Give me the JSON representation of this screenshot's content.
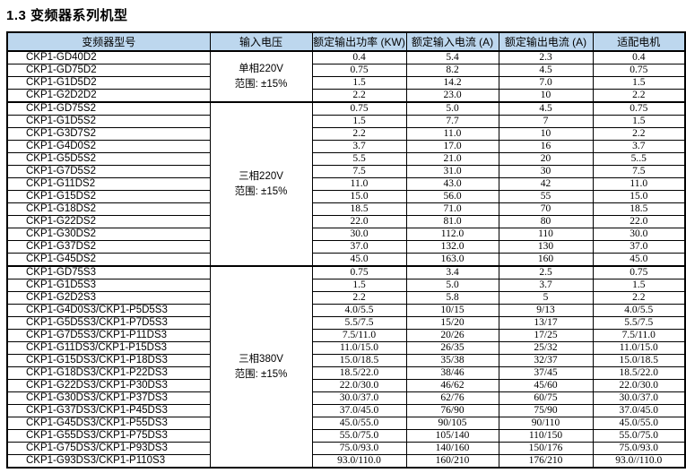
{
  "page": {
    "title": "1.3 变频器系列机型"
  },
  "table": {
    "headers": [
      "变频器型号",
      "输入电压",
      "额定输出功率 (KW)",
      "额定输入电流 (A)",
      "额定输出电流 (A)",
      "适配电机"
    ],
    "groups": [
      {
        "voltage": "单相220V",
        "range": "范围: ±15%",
        "rows": [
          [
            "CKP1-GD40D2",
            "0.4",
            "5.4",
            "2.3",
            "0.4"
          ],
          [
            "CKP1-GD75D2",
            "0.75",
            "8.2",
            "4.5",
            "0.75"
          ],
          [
            "CKP1-G1D5D2",
            "1.5",
            "14.2",
            "7.0",
            "1.5"
          ],
          [
            "CKP1-G2D2D2",
            "2.2",
            "23.0",
            "10",
            "2.2"
          ]
        ]
      },
      {
        "voltage": "三相220V",
        "range": "范围: ±15%",
        "rows": [
          [
            "CKP1-GD75S2",
            "0.75",
            "5.0",
            "4.5",
            "0.75"
          ],
          [
            "CKP1-G1D5S2",
            "1.5",
            "7.7",
            "7",
            "1.5"
          ],
          [
            "CKP1-G3D7S2",
            "2.2",
            "11.0",
            "10",
            "2.2"
          ],
          [
            "CKP1-G4D0S2",
            "3.7",
            "17.0",
            "16",
            "3.7"
          ],
          [
            "CKP1-G5D5S2",
            "5.5",
            "21.0",
            "20",
            "5..5"
          ],
          [
            "CKP1-G7D5S2",
            "7.5",
            "31.0",
            "30",
            "7.5"
          ],
          [
            "CKP1-G11DS2",
            "11.0",
            "43.0",
            "42",
            "11.0"
          ],
          [
            "CKP1-G15DS2",
            "15.0",
            "56.0",
            "55",
            "15.0"
          ],
          [
            "CKP1-G18DS2",
            "18.5",
            "71.0",
            "70",
            "18.5"
          ],
          [
            "CKP1-G22DS2",
            "22.0",
            "81.0",
            "80",
            "22.0"
          ],
          [
            "CKP1-G30DS2",
            "30.0",
            "112.0",
            "110",
            "30.0"
          ],
          [
            "CKP1-G37DS2",
            "37.0",
            "132.0",
            "130",
            "37.0"
          ],
          [
            "CKP1-G45DS2",
            "45.0",
            "163.0",
            "160",
            "45.0"
          ]
        ]
      },
      {
        "voltage": "三相380V",
        "range": "范围: ±15%",
        "rows": [
          [
            "CKP1-GD75S3",
            "0.75",
            "3.4",
            "2.5",
            "0.75"
          ],
          [
            "CKP1-G1D5S3",
            "1.5",
            "5.0",
            "3.7",
            "1.5"
          ],
          [
            "CKP1-G2D2S3",
            "2.2",
            "5.8",
            "5",
            "2.2"
          ],
          [
            "CKP1-G4D0S3/CKP1-P5D5S3",
            "4.0/5.5",
            "10/15",
            "9/13",
            "4.0/5.5"
          ],
          [
            "CKP1-G5D5S3/CKP1-P7D5S3",
            "5.5/7.5",
            "15/20",
            "13/17",
            "5.5/7.5"
          ],
          [
            "CKP1-G7D5S3/CKP1-P11DS3",
            "7.5/11.0",
            "20/26",
            "17/25",
            "7.5/11.0"
          ],
          [
            "CKP1-G11DS3/CKP1-P15DS3",
            "11.0/15.0",
            "26/35",
            "25/32",
            "11.0/15.0"
          ],
          [
            "CKP1-G15DS3/CKP1-P18DS3",
            "15.0/18.5",
            "35/38",
            "32/37",
            "15.0/18.5"
          ],
          [
            "CKP1-G18DS3/CKP1-P22DS3",
            "18.5/22.0",
            "38/46",
            "37/45",
            "18.5/22.0"
          ],
          [
            "CKP1-G22DS3/CKP1-P30DS3",
            "22.0/30.0",
            "46/62",
            "45/60",
            "22.0/30.0"
          ],
          [
            "CKP1-G30DS3/CKP1-P37DS3",
            "30.0/37.0",
            "62/76",
            "60/75",
            "30.0/37.0"
          ],
          [
            "CKP1-G37DS3/CKP1-P45DS3",
            "37.0/45.0",
            "76/90",
            "75/90",
            "37.0/45.0"
          ],
          [
            "CKP1-G45DS3/CKP1-P55DS3",
            "45.0/55.0",
            "90/105",
            "90/110",
            "45.0/55.0"
          ],
          [
            "CKP1-G55DS3/CKP1-P75DS3",
            "55.0/75.0",
            "105/140",
            "110/150",
            "55.0/75.0"
          ],
          [
            "CKP1-G75DS3/CKP1-P93DS3",
            "75.0/93.0",
            "140/160",
            "150/176",
            "75.0/93.0"
          ],
          [
            "CKP1-G93DS3/CKP1-P110S3",
            "93.0/110.0",
            "160/210",
            "176/210",
            "93.0//110.0"
          ]
        ]
      }
    ]
  }
}
